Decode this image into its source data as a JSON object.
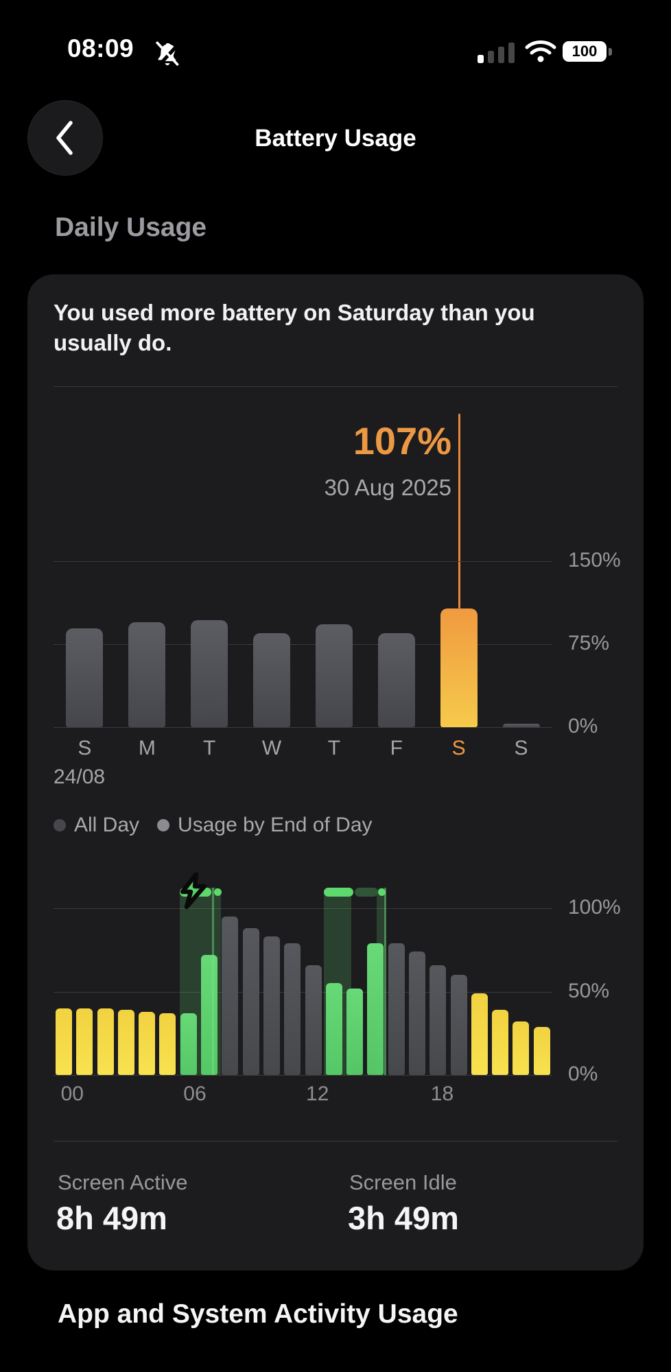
{
  "status_bar": {
    "time": "08:09",
    "battery_percent": "100"
  },
  "header": {
    "title": "Battery Usage"
  },
  "sections": {
    "daily_usage": "Daily Usage",
    "bottom_heading": "App and System Activity Usage"
  },
  "card": {
    "insight": "You used more battery on Saturday than you usually do.",
    "stats": [
      {
        "label": "Screen Active",
        "value": "8h 49m"
      },
      {
        "label": "Screen Idle",
        "value": "3h 49m"
      }
    ]
  },
  "colors": {
    "accent_orange": "#ED9843",
    "selected_line": "#E8883A",
    "gray_bar_top": "#5c5d62",
    "gray_bar_bottom": "#45464b",
    "orange_bar_top": "#f09a40",
    "orange_bar_bottom": "#f6ca4b",
    "yellow_top": "#f2d241",
    "yellow_bottom": "#f8e24f",
    "green_top": "#69da78",
    "green_bottom": "#54c465",
    "hgray_top": "#57585d",
    "hgray_bottom": "#47484c",
    "legend_dot_all_day": "#48484c",
    "legend_dot_end_of_day": "#8b8b90",
    "charge_cap": "#5ed96d"
  },
  "chart_data": [
    {
      "type": "bar",
      "name": "daily-battery-usage",
      "categories": [
        "S",
        "M",
        "T",
        "W",
        "T",
        "F",
        "S",
        "S"
      ],
      "values": [
        89,
        95,
        97,
        85,
        93,
        85,
        107,
        3
      ],
      "selected_index": 6,
      "selected_value_label": "107%",
      "selected_date_label": "30 Aug 2025",
      "start_date_label": "24/08",
      "y_ticks": [
        {
          "label": "150%",
          "value": 150
        },
        {
          "label": "75%",
          "value": 75
        },
        {
          "label": "0%",
          "value": 0
        }
      ],
      "ylim": [
        0,
        150
      ],
      "grid": true,
      "legend": [
        "All Day",
        "Usage by End of Day"
      ],
      "legend_position": "bottom-left"
    },
    {
      "type": "bar",
      "name": "battery-level-by-hour",
      "x": [
        0,
        1,
        2,
        3,
        4,
        5,
        6,
        7,
        8,
        9,
        10,
        11,
        12,
        13,
        14,
        15,
        16,
        17,
        18,
        19,
        20,
        21,
        22,
        23
      ],
      "values": [
        40,
        40,
        40,
        39,
        38,
        37,
        37,
        72,
        95,
        88,
        83,
        79,
        66,
        55,
        52,
        79,
        79,
        74,
        66,
        60,
        49,
        39,
        32,
        29
      ],
      "bar_kinds": [
        "yellow",
        "yellow",
        "yellow",
        "yellow",
        "yellow",
        "yellow",
        "green",
        "green",
        "gray",
        "gray",
        "gray",
        "gray",
        "gray",
        "green",
        "green",
        "green",
        "gray",
        "gray",
        "gray",
        "gray",
        "yellow",
        "yellow",
        "yellow",
        "yellow"
      ],
      "x_ticks": [
        {
          "label": "00",
          "hour": 0.9
        },
        {
          "label": "06",
          "hour": 6.8
        },
        {
          "label": "12",
          "hour": 12.7
        },
        {
          "label": "18",
          "hour": 18.7
        }
      ],
      "y_ticks": [
        {
          "label": "100%",
          "value": 100
        },
        {
          "label": "50%",
          "value": 50
        },
        {
          "label": "0%",
          "value": 0
        }
      ],
      "ylim": [
        0,
        100
      ],
      "grid": true,
      "charging_sessions": [
        {
          "fills": [
            [
              6.07,
              8.06
            ]
          ],
          "caps_bright": [
            [
              6.07,
              7.6
            ]
          ],
          "caps_dark": [],
          "line_at": 7.63,
          "dot_at": 7.92,
          "bolt": true
        },
        {
          "fills": [
            [
              13.0,
              14.33
            ],
            [
              15.55,
              15.98
            ]
          ],
          "caps_bright": [
            [
              13.0,
              14.43
            ]
          ],
          "caps_dark": [
            [
              14.5,
              15.62
            ]
          ],
          "line_at": 15.9,
          "dot_at": 15.78,
          "bolt": false
        }
      ]
    }
  ]
}
